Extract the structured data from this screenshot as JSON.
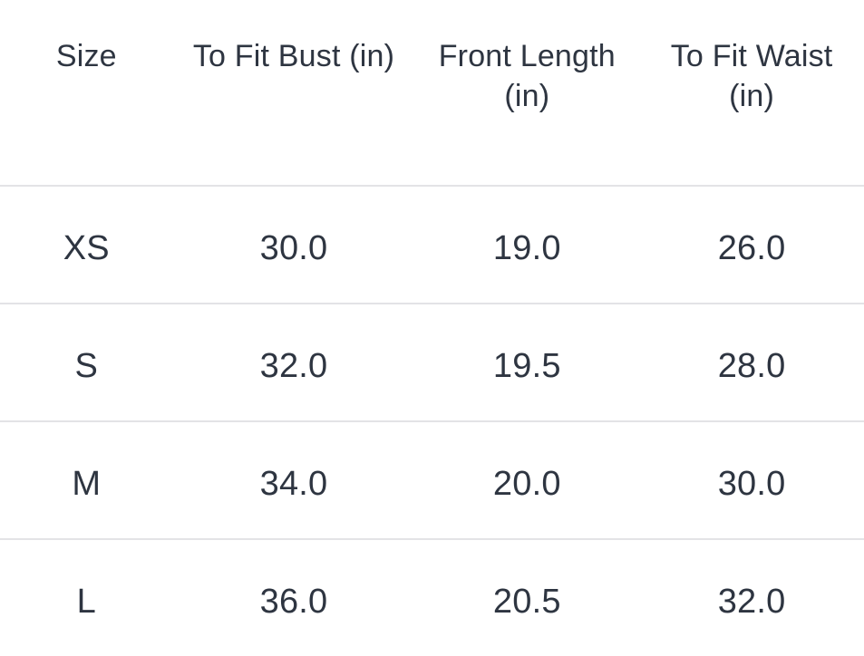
{
  "size_chart": {
    "columns": [
      {
        "label": "Size",
        "sub": ""
      },
      {
        "label": "To Fit Bust (in)",
        "sub": ""
      },
      {
        "label": "Front Length",
        "sub": "(in)"
      },
      {
        "label": "To Fit Waist",
        "sub": "(in)"
      }
    ],
    "rows": [
      {
        "size": "XS",
        "bust": "30.0",
        "front_length": "19.0",
        "waist": "26.0"
      },
      {
        "size": "S",
        "bust": "32.0",
        "front_length": "19.5",
        "waist": "28.0"
      },
      {
        "size": "M",
        "bust": "34.0",
        "front_length": "20.0",
        "waist": "30.0"
      },
      {
        "size": "L",
        "bust": "36.0",
        "front_length": "20.5",
        "waist": "32.0"
      }
    ],
    "colors": {
      "text": "#2e3541",
      "divider": "#e3e3e6",
      "background": "#ffffff"
    }
  }
}
